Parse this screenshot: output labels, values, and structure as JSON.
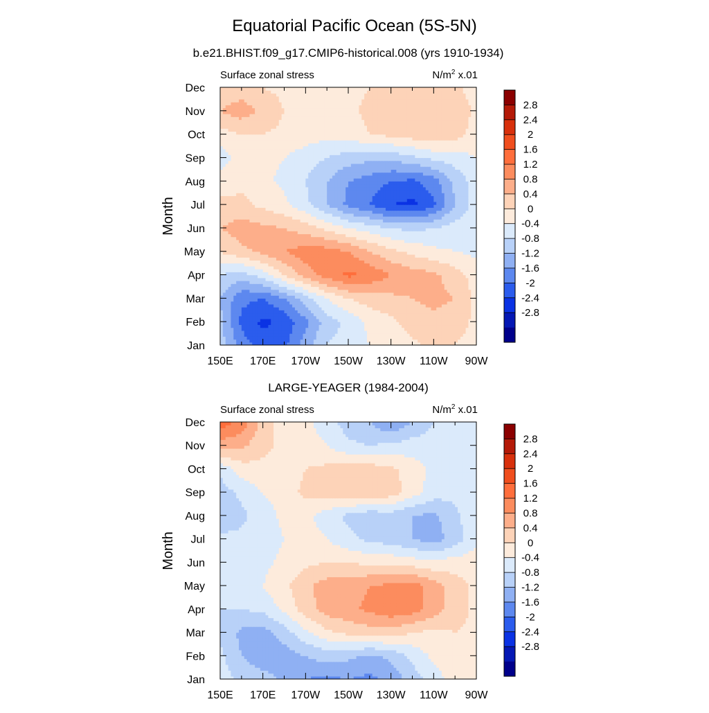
{
  "page": {
    "title": "Equatorial Pacific Ocean (5S-5N)"
  },
  "colorbar": {
    "levels": [
      "2.8",
      "2.4",
      "2",
      "1.6",
      "1.2",
      "0.8",
      "0.4",
      "0",
      "-0.4",
      "-0.8",
      "-1.2",
      "-1.6",
      "-2",
      "-2.4",
      "-2.8"
    ],
    "colors": [
      "#8b0000",
      "#b41a08",
      "#d8300c",
      "#f04e1e",
      "#ff6e3c",
      "#fc8c5e",
      "#fdae8a",
      "#fdd3b8",
      "#fdebdc",
      "#dbeafb",
      "#b8d1f8",
      "#8fb0f3",
      "#5d88ef",
      "#2b5ced",
      "#0a32e4",
      "#0518b4",
      "#00008b"
    ]
  },
  "chart_data": [
    {
      "type": "heatmap",
      "title": "b.e21.BHIST.f09_g17.CMIP6-historical.008 (yrs 1910-1934)",
      "left_string": "Surface zonal stress",
      "right_base": "N/m",
      "right_sup": "2",
      "right_tail": " x.01",
      "ylabel": "Month",
      "x_ticks": [
        "150E",
        "170E",
        "170W",
        "150W",
        "130W",
        "110W",
        "90W"
      ],
      "y_ticks": [
        "Jan",
        "Feb",
        "Mar",
        "Apr",
        "May",
        "Jun",
        "Jul",
        "Aug",
        "Sep",
        "Oct",
        "Nov",
        "Dec"
      ],
      "x_range": [
        150,
        270
      ],
      "y_range": [
        0,
        11
      ],
      "x_grid": [
        150,
        160,
        170,
        180,
        190,
        200,
        210,
        220,
        230,
        240,
        250,
        260,
        270
      ],
      "y_grid": [
        0,
        1,
        2,
        3,
        4,
        5,
        6,
        7,
        8,
        9,
        10,
        11
      ],
      "values": [
        [
          -0.6,
          -1.4,
          -1.8,
          -1.7,
          -1.0,
          -0.4,
          -0.2,
          0.0,
          0.1,
          0.3,
          0.5,
          0.4,
          0.2
        ],
        [
          -0.7,
          -1.7,
          -2.1,
          -1.9,
          -1.3,
          -0.6,
          -0.3,
          0.1,
          0.3,
          0.6,
          0.7,
          0.6,
          0.3
        ],
        [
          -0.8,
          -1.5,
          -1.6,
          -1.2,
          -0.6,
          0.0,
          0.4,
          0.6,
          0.7,
          0.8,
          0.9,
          0.8,
          0.3
        ],
        [
          -0.4,
          -0.6,
          -0.2,
          0.4,
          1.0,
          1.4,
          1.7,
          1.5,
          1.2,
          1.0,
          0.9,
          0.6,
          0.2
        ],
        [
          0.4,
          0.7,
          0.9,
          1.2,
          1.4,
          1.4,
          1.2,
          0.8,
          0.5,
          0.3,
          0.1,
          0.0,
          -0.1
        ],
        [
          0.8,
          1.0,
          0.9,
          0.8,
          0.6,
          0.3,
          0.0,
          -0.2,
          -0.4,
          -0.5,
          -0.4,
          -0.2,
          -0.1
        ],
        [
          0.5,
          0.5,
          0.3,
          0.1,
          -0.3,
          -0.8,
          -1.3,
          -1.6,
          -2.0,
          -2.1,
          -1.7,
          -0.8,
          -0.2
        ],
        [
          0.2,
          0.3,
          0.1,
          -0.1,
          -0.4,
          -0.8,
          -1.2,
          -1.4,
          -1.6,
          -1.7,
          -1.4,
          -0.7,
          -0.2
        ],
        [
          -0.2,
          0.2,
          0.1,
          0.0,
          -0.2,
          -0.4,
          -0.6,
          -0.7,
          -0.7,
          -0.5,
          -0.3,
          -0.2,
          0.0
        ],
        [
          0.2,
          0.4,
          0.4,
          0.3,
          0.2,
          0.1,
          0.2,
          0.4,
          0.5,
          0.6,
          0.7,
          0.6,
          0.2
        ],
        [
          0.8,
          1.0,
          0.7,
          0.4,
          0.3,
          0.2,
          0.3,
          0.5,
          0.6,
          0.7,
          0.7,
          0.7,
          0.3
        ],
        [
          0.5,
          0.6,
          0.4,
          0.3,
          0.2,
          0.2,
          0.3,
          0.4,
          0.5,
          0.5,
          0.6,
          0.5,
          0.2
        ]
      ]
    },
    {
      "type": "heatmap",
      "title": "LARGE-YEAGER (1984-2004)",
      "left_string": "Surface zonal stress",
      "right_base": "N/m",
      "right_sup": "2",
      "right_tail": " x.01",
      "ylabel": "Month",
      "x_ticks": [
        "150E",
        "170E",
        "170W",
        "150W",
        "130W",
        "110W",
        "90W"
      ],
      "y_ticks": [
        "Jan",
        "Feb",
        "Mar",
        "Apr",
        "May",
        "Jun",
        "Jul",
        "Aug",
        "Sep",
        "Oct",
        "Nov",
        "Dec"
      ],
      "x_range": [
        150,
        270
      ],
      "y_range": [
        0,
        11
      ],
      "x_grid": [
        150,
        160,
        170,
        180,
        190,
        200,
        210,
        220,
        230,
        240,
        250,
        260,
        270
      ],
      "y_grid": [
        0,
        1,
        2,
        3,
        4,
        5,
        6,
        7,
        8,
        9,
        10,
        11
      ],
      "values": [
        [
          -0.2,
          -0.5,
          -0.6,
          -0.9,
          -1.2,
          -1.3,
          -1.2,
          -1.3,
          -1.1,
          -0.6,
          -0.2,
          0.2,
          0.3
        ],
        [
          -0.3,
          -0.8,
          -1.1,
          -1.0,
          -0.8,
          -0.6,
          -0.7,
          -0.9,
          -0.7,
          -0.3,
          0.1,
          0.3,
          0.3
        ],
        [
          -0.5,
          -0.9,
          -1.0,
          -0.6,
          -0.1,
          0.3,
          0.5,
          0.6,
          0.6,
          0.4,
          0.3,
          0.4,
          0.3
        ],
        [
          -0.4,
          -0.4,
          -0.3,
          0.1,
          0.6,
          1.0,
          1.1,
          1.3,
          1.5,
          1.4,
          1.0,
          0.6,
          0.3
        ],
        [
          -0.3,
          -0.2,
          0.0,
          0.3,
          0.7,
          1.0,
          1.0,
          1.2,
          1.3,
          1.4,
          1.0,
          0.6,
          0.3
        ],
        [
          -0.2,
          -0.2,
          -0.1,
          0.1,
          0.3,
          0.4,
          0.4,
          0.3,
          0.3,
          0.2,
          0.1,
          0.2,
          0.2
        ],
        [
          -0.3,
          -0.3,
          -0.2,
          0.0,
          0.2,
          0.0,
          -0.3,
          -0.5,
          -0.6,
          -0.8,
          -1.0,
          -0.6,
          -0.1
        ],
        [
          -0.7,
          -0.5,
          -0.2,
          0.1,
          0.1,
          -0.2,
          -0.5,
          -0.7,
          -0.6,
          -0.8,
          -0.9,
          -0.5,
          -0.1
        ],
        [
          -0.6,
          -0.3,
          0.0,
          0.2,
          0.5,
          0.6,
          0.7,
          0.8,
          0.6,
          0.2,
          -0.2,
          -0.3,
          -0.1
        ],
        [
          -0.3,
          0.2,
          0.3,
          0.2,
          0.4,
          0.5,
          0.6,
          0.6,
          0.5,
          0.2,
          -0.1,
          -0.2,
          -0.1
        ],
        [
          1.0,
          0.9,
          0.5,
          0.3,
          0.2,
          0.0,
          -0.3,
          -0.4,
          -0.3,
          -0.2,
          -0.2,
          -0.1,
          0.0
        ],
        [
          1.8,
          1.5,
          0.6,
          0.2,
          0.1,
          -0.2,
          -0.6,
          -0.8,
          -1.2,
          -0.8,
          -0.4,
          -0.2,
          0.0
        ]
      ]
    }
  ]
}
